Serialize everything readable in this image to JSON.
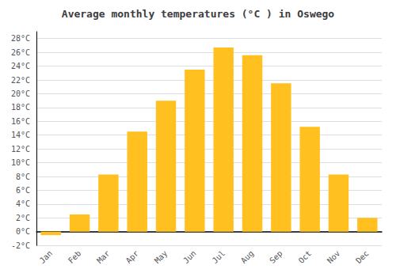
{
  "chart_data": {
    "type": "bar",
    "title": "Average monthly temperatures (°C ) in Oswego",
    "categories": [
      "Jan",
      "Feb",
      "Mar",
      "Apr",
      "May",
      "Jun",
      "Jul",
      "Aug",
      "Sep",
      "Oct",
      "Nov",
      "Dec"
    ],
    "values": [
      -0.5,
      2.5,
      8.3,
      14.5,
      19.0,
      23.5,
      26.7,
      25.6,
      21.5,
      15.2,
      8.3,
      2.0
    ],
    "color": "#FFC020",
    "ylim": [
      -2,
      29
    ],
    "yticks": [
      {
        "value": -2,
        "label": "-2°C"
      },
      {
        "value": 0,
        "label": "0°C"
      },
      {
        "value": 2,
        "label": "2°C"
      },
      {
        "value": 4,
        "label": "4°C"
      },
      {
        "value": 6,
        "label": "6°C"
      },
      {
        "value": 8,
        "label": "8°C"
      },
      {
        "value": 10,
        "label": "10°C"
      },
      {
        "value": 12,
        "label": "12°C"
      },
      {
        "value": 14,
        "label": "14°C"
      },
      {
        "value": 16,
        "label": "16°C"
      },
      {
        "value": 18,
        "label": "18°C"
      },
      {
        "value": 20,
        "label": "20°C"
      },
      {
        "value": 22,
        "label": "22°C"
      },
      {
        "value": 24,
        "label": "24°C"
      },
      {
        "value": 26,
        "label": "26°C"
      },
      {
        "value": 28,
        "label": "28°C"
      }
    ],
    "grid": true
  }
}
